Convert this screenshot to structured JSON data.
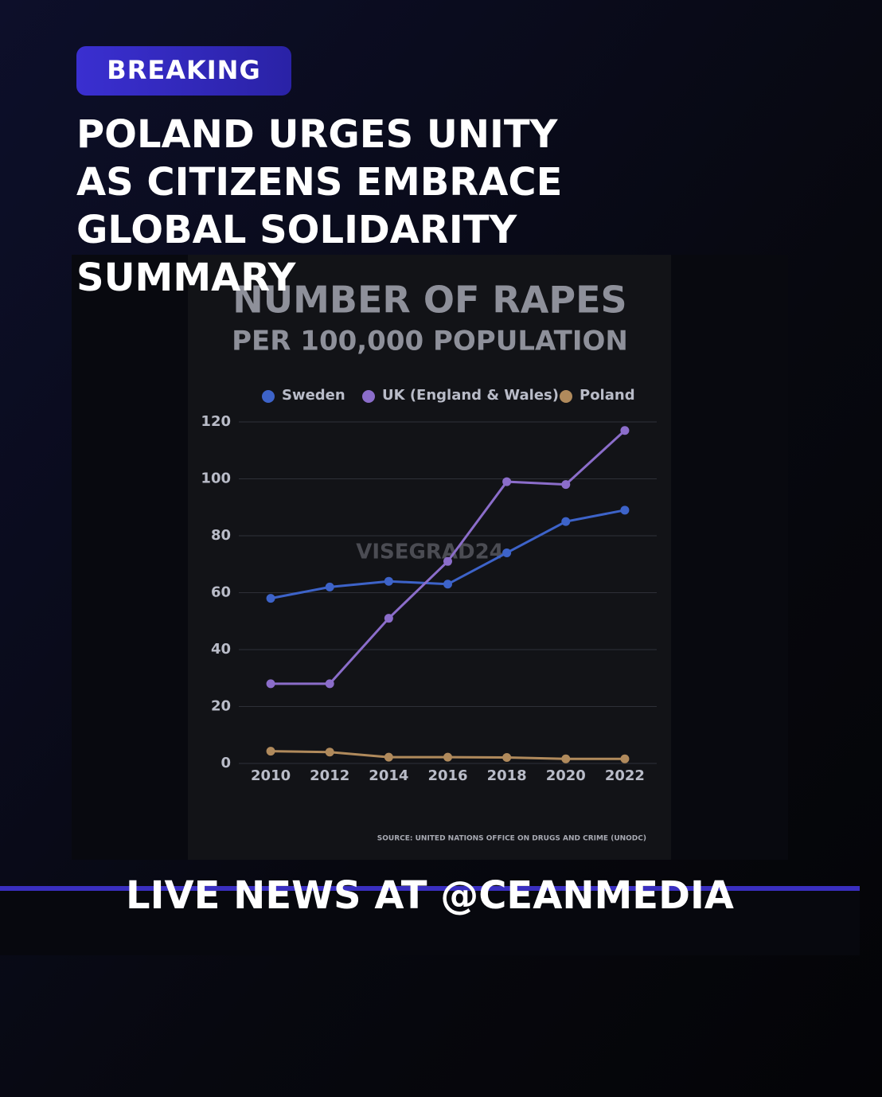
{
  "badge": "BREAKING",
  "headline": [
    "POLAND URGES UNITY",
    "AS CITIZENS EMBRACE",
    "GLOBAL SOLIDARITY",
    "SUMMARY"
  ],
  "footer": "LIVE NEWS AT @CEANMEDIA",
  "chart_data": {
    "type": "line",
    "title": "NUMBER OF RAPES",
    "subtitle": "PER 100,000 POPULATION",
    "watermark": "VISEGRAD24",
    "source": "SOURCE: UNITED NATIONS OFFICE ON DRUGS AND CRIME (UNODC)",
    "x": [
      2010,
      2012,
      2014,
      2016,
      2018,
      2020,
      2022
    ],
    "series": [
      {
        "name": "Sweden",
        "color": "#3d63c9",
        "values": [
          58,
          62,
          64,
          63,
          74,
          85,
          89
        ]
      },
      {
        "name": "UK (England & Wales)",
        "color": "#8b6dca",
        "values": [
          28,
          28,
          51,
          71,
          99,
          98,
          117
        ]
      },
      {
        "name": "Poland",
        "color": "#b08a5c",
        "values": [
          4.3,
          4,
          2.2,
          2.2,
          2.1,
          1.6,
          1.6
        ]
      }
    ],
    "xlim": [
      2009,
      2023
    ],
    "xticks": [
      2010,
      2012,
      2014,
      2016,
      2018,
      2020,
      2022
    ],
    "ylim": [
      0,
      120
    ],
    "yticks": [
      0,
      20,
      40,
      60,
      80,
      100,
      120
    ],
    "grid": true,
    "legend": "top"
  }
}
